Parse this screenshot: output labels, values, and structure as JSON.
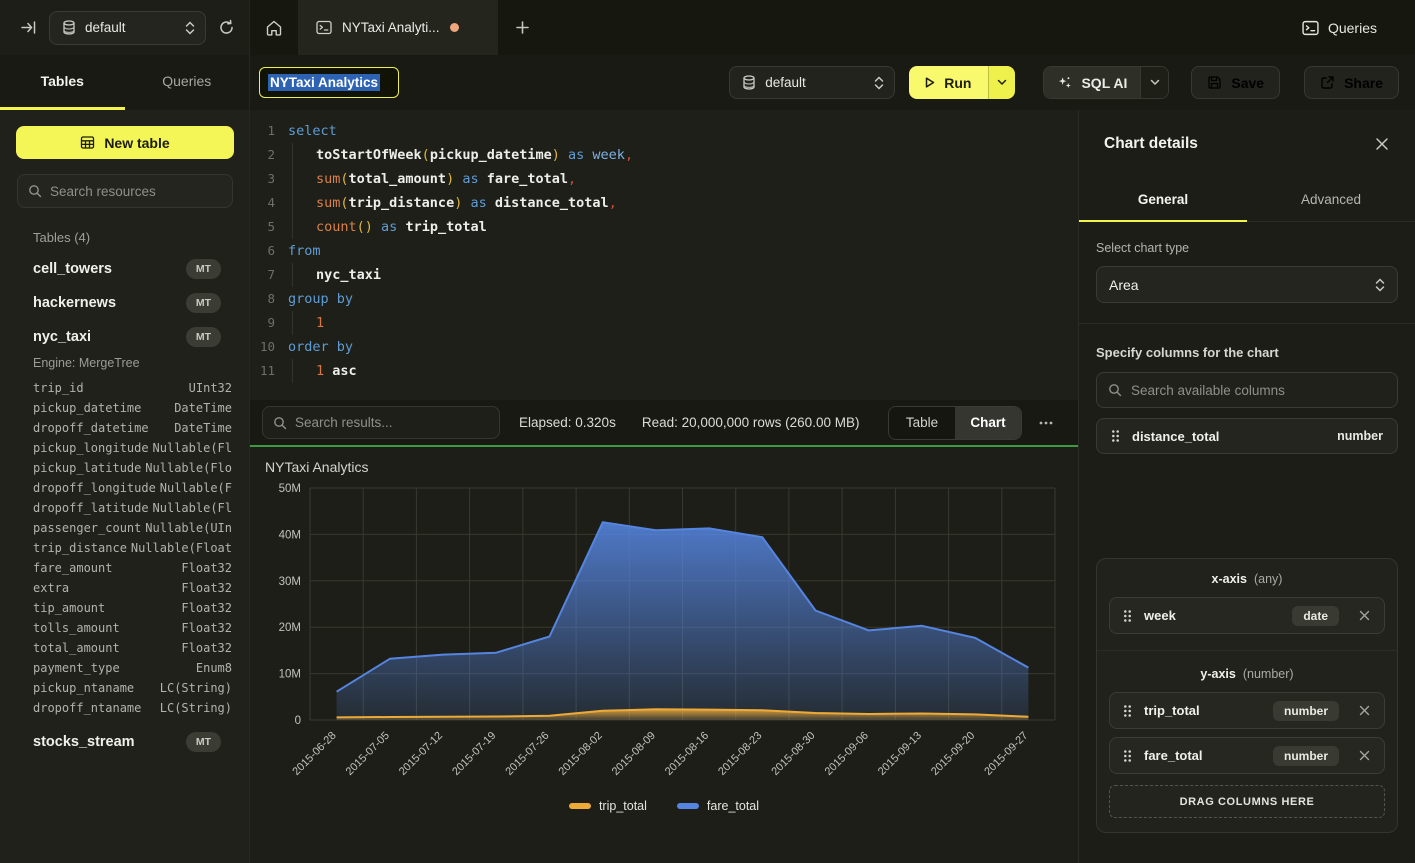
{
  "theme": {
    "accent_yellow": "#f4f557",
    "success_green": "#3f9940",
    "unsaved_dot": "#f0a67d",
    "selection_blue": "#2d63b2"
  },
  "icons": {
    "collapse-sidebar": "⇥",
    "database": "⛁",
    "refresh": "↻",
    "home": "⌂",
    "console-tab": ">_",
    "plus": "+",
    "play": "▷",
    "sparkles": "✦",
    "save": "🖫",
    "share": "↗",
    "search": "⌕",
    "updown-chevron": "⇕",
    "chevron-down": "⌄",
    "close": "✕",
    "more": "⋯",
    "drag-handle": "⠿",
    "table-grid": "▦"
  },
  "top_bar": {
    "database_value": "default",
    "tab_label": "NYTaxi Analyti...",
    "queries_label": "Queries"
  },
  "sidebar": {
    "tabs": [
      {
        "label": "Tables"
      },
      {
        "label": "Queries"
      }
    ],
    "new_table_label": "New table",
    "search_placeholder": "Search resources",
    "section_header": "Tables (4)",
    "tables": [
      {
        "name": "cell_towers",
        "badge": "MT"
      },
      {
        "name": "hackernews",
        "badge": "MT"
      },
      {
        "name": "nyc_taxi",
        "badge": "MT",
        "engine": "Engine: MergeTree",
        "columns": [
          {
            "name": "trip_id",
            "type": "UInt32"
          },
          {
            "name": "pickup_datetime",
            "type": "DateTime"
          },
          {
            "name": "dropoff_datetime",
            "type": "DateTime"
          },
          {
            "name": "pickup_longitude",
            "type": "Nullable(Fl"
          },
          {
            "name": "pickup_latitude",
            "type": "Nullable(Flo"
          },
          {
            "name": "dropoff_longitude",
            "type": "Nullable(F"
          },
          {
            "name": "dropoff_latitude",
            "type": "Nullable(Fl"
          },
          {
            "name": "passenger_count",
            "type": "Nullable(UIn"
          },
          {
            "name": "trip_distance",
            "type": "Nullable(Float"
          },
          {
            "name": "fare_amount",
            "type": "Float32"
          },
          {
            "name": "extra",
            "type": "Float32"
          },
          {
            "name": "tip_amount",
            "type": "Float32"
          },
          {
            "name": "tolls_amount",
            "type": "Float32"
          },
          {
            "name": "total_amount",
            "type": "Float32"
          },
          {
            "name": "payment_type",
            "type": "Enum8"
          },
          {
            "name": "pickup_ntaname",
            "type": "LC(String)"
          },
          {
            "name": "dropoff_ntaname",
            "type": "LC(String)"
          }
        ]
      },
      {
        "name": "stocks_stream",
        "badge": "MT"
      }
    ]
  },
  "toolbar": {
    "query_title": "NYTaxi Analytics",
    "database_value": "default",
    "run_label": "Run",
    "sql_ai_label": "SQL AI",
    "save_label": "Save",
    "share_label": "Share"
  },
  "editor": {
    "lines": [
      {
        "n": "1",
        "ind": false,
        "tokens": [
          {
            "t": "select",
            "c": "kw"
          }
        ]
      },
      {
        "n": "2",
        "ind": true,
        "tokens": [
          {
            "t": "toStartOfWeek",
            "c": "id"
          },
          {
            "t": "(",
            "c": "pa"
          },
          {
            "t": "pickup_datetime",
            "c": "id"
          },
          {
            "t": ")",
            "c": "pa"
          },
          {
            "t": " ",
            "c": "sp"
          },
          {
            "t": "as",
            "c": "kw"
          },
          {
            "t": " ",
            "c": "sp"
          },
          {
            "t": "week",
            "c": "kw2"
          },
          {
            "t": ",",
            "c": "cm"
          }
        ]
      },
      {
        "n": "3",
        "ind": true,
        "tokens": [
          {
            "t": "sum",
            "c": "fn"
          },
          {
            "t": "(",
            "c": "pa"
          },
          {
            "t": "total_amount",
            "c": "id"
          },
          {
            "t": ")",
            "c": "pa"
          },
          {
            "t": " ",
            "c": "sp"
          },
          {
            "t": "as",
            "c": "kw"
          },
          {
            "t": " ",
            "c": "sp"
          },
          {
            "t": "fare_total",
            "c": "id"
          },
          {
            "t": ",",
            "c": "cm"
          }
        ]
      },
      {
        "n": "4",
        "ind": true,
        "tokens": [
          {
            "t": "sum",
            "c": "fn"
          },
          {
            "t": "(",
            "c": "pa"
          },
          {
            "t": "trip_distance",
            "c": "id"
          },
          {
            "t": ")",
            "c": "pa"
          },
          {
            "t": " ",
            "c": "sp"
          },
          {
            "t": "as",
            "c": "kw"
          },
          {
            "t": " ",
            "c": "sp"
          },
          {
            "t": "distance_total",
            "c": "id"
          },
          {
            "t": ",",
            "c": "cm"
          }
        ]
      },
      {
        "n": "5",
        "ind": true,
        "tokens": [
          {
            "t": "count",
            "c": "fn"
          },
          {
            "t": "()",
            "c": "pa"
          },
          {
            "t": " ",
            "c": "sp"
          },
          {
            "t": "as",
            "c": "kw"
          },
          {
            "t": " ",
            "c": "sp"
          },
          {
            "t": "trip_total",
            "c": "id"
          }
        ]
      },
      {
        "n": "6",
        "ind": false,
        "tokens": [
          {
            "t": "from",
            "c": "kw"
          }
        ]
      },
      {
        "n": "7",
        "ind": true,
        "tokens": [
          {
            "t": "nyc_taxi",
            "c": "id"
          }
        ]
      },
      {
        "n": "8",
        "ind": false,
        "tokens": [
          {
            "t": "group by",
            "c": "kw"
          }
        ]
      },
      {
        "n": "9",
        "ind": true,
        "tokens": [
          {
            "t": "1",
            "c": "num"
          }
        ]
      },
      {
        "n": "10",
        "ind": false,
        "tokens": [
          {
            "t": "order by",
            "c": "kw"
          }
        ]
      },
      {
        "n": "11",
        "ind": true,
        "tokens": [
          {
            "t": "1",
            "c": "num"
          },
          {
            "t": " ",
            "c": "sp"
          },
          {
            "t": "asc",
            "c": "id"
          }
        ]
      }
    ]
  },
  "results_bar": {
    "search_placeholder": "Search results...",
    "elapsed": "Elapsed: 0.320s",
    "read": "Read: 20,000,000 rows (260.00 MB)",
    "views": [
      {
        "label": "Table",
        "active": false
      },
      {
        "label": "Chart",
        "active": true
      }
    ]
  },
  "chart_data": {
    "type": "area",
    "title": "NYTaxi Analytics",
    "x": [
      "2015-06-28",
      "2015-07-05",
      "2015-07-12",
      "2015-07-19",
      "2015-07-26",
      "2015-08-02",
      "2015-08-09",
      "2015-08-16",
      "2015-08-23",
      "2015-08-30",
      "2015-09-06",
      "2015-09-13",
      "2015-09-20",
      "2015-09-27"
    ],
    "series": [
      {
        "name": "trip_total",
        "color": "#edaa38",
        "values": [
          550000,
          650000,
          700000,
          750000,
          900000,
          2000000,
          2300000,
          2250000,
          2100000,
          1500000,
          1300000,
          1400000,
          1200000,
          700000
        ]
      },
      {
        "name": "fare_total",
        "color": "#5585e0",
        "values": [
          6100000,
          13200000,
          14100000,
          14500000,
          18000000,
          42600000,
          40900000,
          41300000,
          39400000,
          23600000,
          19300000,
          20300000,
          17700000,
          11300000
        ]
      }
    ],
    "xlabel": "",
    "ylabel": "",
    "ylim": [
      0,
      50000000
    ],
    "y_tick_values": [
      0,
      10000000,
      20000000,
      30000000,
      40000000,
      50000000
    ],
    "y_ticks": [
      "0",
      "10M",
      "20M",
      "30M",
      "40M",
      "50M"
    ],
    "grid": true,
    "legend_position": "bottom"
  },
  "panel": {
    "title": "Chart details",
    "tabs": [
      {
        "label": "General"
      },
      {
        "label": "Advanced"
      }
    ],
    "chart_type_label": "Select chart type",
    "chart_type_value": "Area",
    "columns_label": "Specify columns for the chart",
    "columns_search_placeholder": "Search available columns",
    "available_columns": [
      {
        "name": "distance_total",
        "type": "number"
      }
    ],
    "x_axis": {
      "title": "x-axis",
      "hint": "(any)",
      "items": [
        {
          "name": "week",
          "type": "date"
        }
      ]
    },
    "y_axis": {
      "title": "y-axis",
      "hint": "(number)",
      "items": [
        {
          "name": "trip_total",
          "type": "number"
        },
        {
          "name": "fare_total",
          "type": "number"
        }
      ]
    },
    "drop_zone_label": "DRAG COLUMNS HERE"
  }
}
